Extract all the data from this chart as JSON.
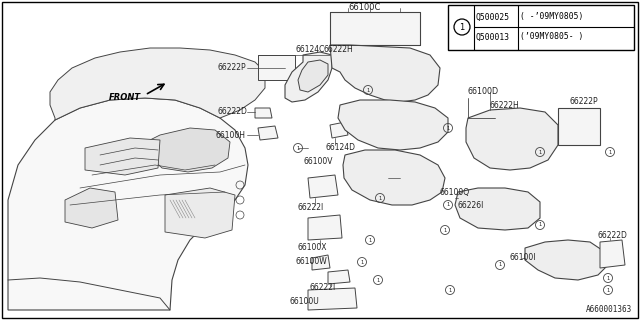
{
  "bg_color": "#ffffff",
  "border_color": "#000000",
  "line_color": "#444444",
  "text_color": "#222222",
  "diagram_code": "A660001363",
  "legend_rows": [
    {
      "part": "Q500025",
      "note": "( -’09MY0805)"
    },
    {
      "part": "Q500013",
      "note": "(’09MY0805- )"
    }
  ],
  "figsize": [
    6.4,
    3.2
  ],
  "dpi": 100
}
